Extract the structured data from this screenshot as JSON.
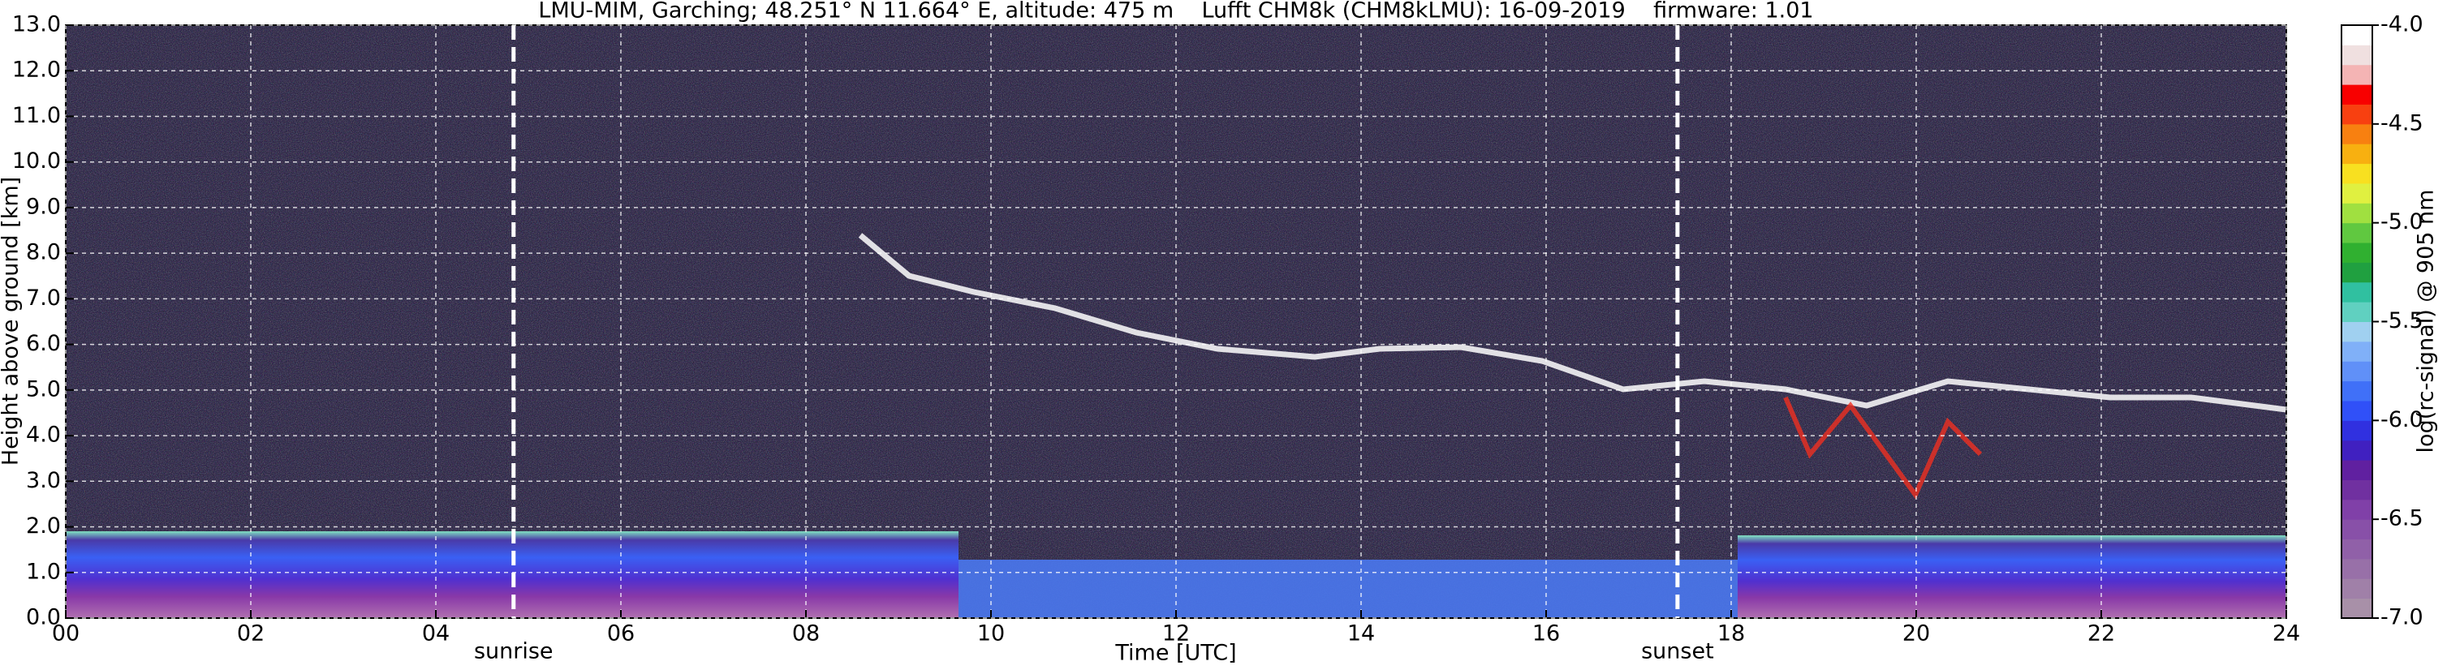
{
  "chart_data": {
    "type": "heatmap",
    "title": "LMU-MIM, Garching; 48.251° N 11.664° E, altitude: 475 m    Lufft CHM8k (CHM8kLMU): 16-09-2019    firmware: 1.01",
    "xlabel": "Time [UTC]",
    "ylabel": "Height above ground [km]",
    "xlim": [
      0,
      24
    ],
    "xticks": [
      {
        "value": 0,
        "label": "00"
      },
      {
        "value": 2,
        "label": "02"
      },
      {
        "value": 4,
        "label": "04"
      },
      {
        "value": 6,
        "label": "06"
      },
      {
        "value": 8,
        "label": "08"
      },
      {
        "value": 10,
        "label": "10"
      },
      {
        "value": 12,
        "label": "12"
      },
      {
        "value": 14,
        "label": "14"
      },
      {
        "value": 16,
        "label": "16"
      },
      {
        "value": 18,
        "label": "18"
      },
      {
        "value": 20,
        "label": "20"
      },
      {
        "value": 22,
        "label": "22"
      },
      {
        "value": 24,
        "label": "24"
      }
    ],
    "ylim": [
      0,
      13
    ],
    "yticks": [
      {
        "value": 0,
        "label": "0.0"
      },
      {
        "value": 1,
        "label": "1.0"
      },
      {
        "value": 2,
        "label": "2.0"
      },
      {
        "value": 3,
        "label": "3.0"
      },
      {
        "value": 4,
        "label": "4.0"
      },
      {
        "value": 5,
        "label": "5.0"
      },
      {
        "value": 6,
        "label": "6.0"
      },
      {
        "value": 7,
        "label": "7.0"
      },
      {
        "value": 8,
        "label": "8.0"
      },
      {
        "value": 9,
        "label": "9.0"
      },
      {
        "value": 10,
        "label": "10.0"
      },
      {
        "value": 11,
        "label": "11.0"
      },
      {
        "value": 12,
        "label": "12.0"
      },
      {
        "value": 13,
        "label": "13.0"
      }
    ],
    "grid": true,
    "annotations": [
      {
        "text": "sunrise",
        "x": 4.84
      },
      {
        "text": "sunset",
        "x": 17.42
      }
    ],
    "colorbar": {
      "label": "log(rc-signal) @ 905 nm",
      "lim": [
        -7,
        -4
      ],
      "ticks": [
        {
          "value": -4,
          "label": "-4.0"
        },
        {
          "value": -4.5,
          "label": "-4.5"
        },
        {
          "value": -5,
          "label": "-5.0"
        },
        {
          "value": -5.5,
          "label": "-5.5"
        },
        {
          "value": -6,
          "label": "-6.0"
        },
        {
          "value": -6.5,
          "label": "-6.5"
        },
        {
          "value": -7,
          "label": "-7.0"
        }
      ],
      "colors": [
        "#a890a8",
        "#a080a8",
        "#9870a8",
        "#9060a8",
        "#8850a8",
        "#8040a8",
        "#7030a0",
        "#6020a0",
        "#4020c0",
        "#3030e0",
        "#3050f8",
        "#4070f8",
        "#6090f8",
        "#80b0f8",
        "#a0d0f0",
        "#60d0c0",
        "#30c0a0",
        "#20a040",
        "#30b030",
        "#60c840",
        "#a0e040",
        "#e0f040",
        "#f8e020",
        "#f8b010",
        "#f88010",
        "#f84010",
        "#f80000",
        "#f4b4b4",
        "#f0e0e0",
        "#ffffff"
      ]
    }
  }
}
